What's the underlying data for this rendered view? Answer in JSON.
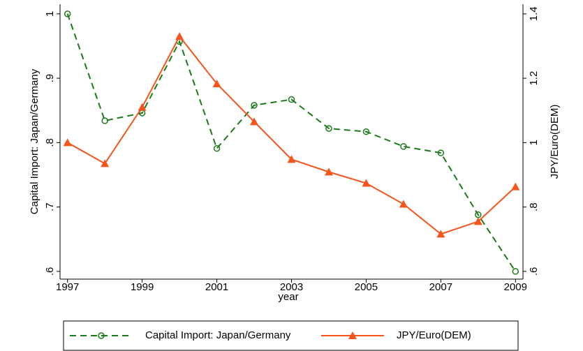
{
  "chart_data": {
    "type": "line",
    "x_label": "year",
    "y_label": "Capital Import: Japan/Germany",
    "y2_label": "JPY/Euro(DEM)",
    "x": [
      1997,
      1998,
      1999,
      2000,
      2001,
      2002,
      2003,
      2004,
      2005,
      2006,
      2007,
      2008,
      2009
    ],
    "series": [
      {
        "name": "Capital Import: Japan/Germany",
        "color": "#1a7a1a",
        "marker": "circle",
        "dashed": true,
        "values": [
          1.0,
          0.834,
          0.846,
          0.957,
          0.791,
          0.858,
          0.867,
          0.822,
          0.817,
          0.794,
          0.784,
          0.688,
          0.6
        ]
      },
      {
        "name": "JPY/Euro(DEM)",
        "color": "#f5541a",
        "marker": "triangle",
        "dashed": false,
        "axis": "y2",
        "values": [
          1.0,
          0.935,
          1.11,
          1.33,
          1.183,
          1.065,
          0.948,
          0.909,
          0.874,
          0.809,
          0.716,
          0.755,
          0.863
        ]
      }
    ],
    "xlim": [
      1996.8,
      2009.2
    ],
    "xticks": [
      1997,
      1999,
      2001,
      2003,
      2005,
      2007,
      2009
    ],
    "ylim": [
      0.588,
      1.015
    ],
    "yticks": [
      {
        "value": 0.6,
        "label": ".6"
      },
      {
        "value": 0.7,
        "label": ".7"
      },
      {
        "value": 0.8,
        "label": ".8"
      },
      {
        "value": 0.9,
        "label": ".9"
      },
      1
    ],
    "y2lim": [
      0.576,
      1.43
    ],
    "y2ticks": [
      {
        "value": 0.6,
        "label": ".6"
      },
      {
        "value": 0.8,
        "label": ".8"
      },
      1,
      1.2,
      1.4
    ],
    "grid": false
  }
}
